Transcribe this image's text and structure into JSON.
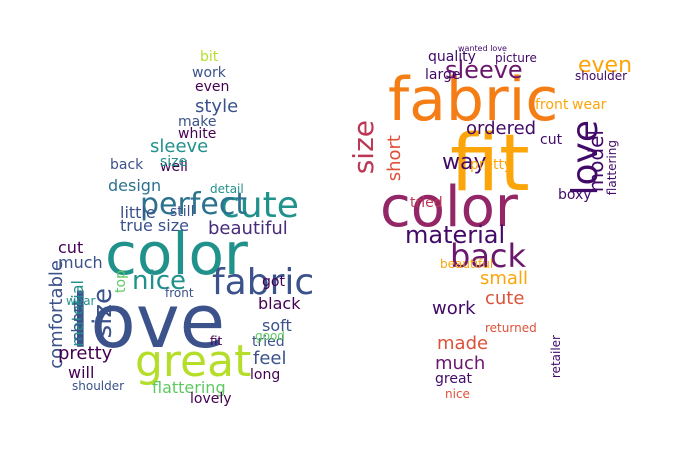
{
  "left_cloud": {
    "shape": "thumbs-up",
    "palette": [
      "#440154",
      "#3b528b",
      "#21918c",
      "#5ec962",
      "#b5de2b",
      "#fde725"
    ],
    "words": [
      {
        "text": "love",
        "weight": 1.0,
        "color": "#3b528b"
      },
      {
        "text": "color",
        "weight": 0.96,
        "color": "#21918c"
      },
      {
        "text": "great",
        "weight": 0.7,
        "color": "#b5de2b"
      },
      {
        "text": "fabric",
        "weight": 0.55,
        "color": "#3b528b"
      },
      {
        "text": "cute",
        "weight": 0.55,
        "color": "#21918c"
      },
      {
        "text": "perfect",
        "weight": 0.5,
        "color": "#2c728e"
      },
      {
        "text": "nice",
        "weight": 0.5,
        "color": "#21918c"
      },
      {
        "text": "size",
        "weight": 0.5,
        "color": "#3b528b"
      },
      {
        "text": "beautiful",
        "weight": 0.38,
        "color": "#472c7a"
      },
      {
        "text": "true size",
        "weight": 0.35,
        "color": "#3b528b"
      },
      {
        "text": "flattering",
        "weight": 0.35,
        "color": "#5ec962"
      },
      {
        "text": "comfortable",
        "weight": 0.32,
        "color": "#3b528b"
      },
      {
        "text": "pretty",
        "weight": 0.32,
        "color": "#440154"
      },
      {
        "text": "feel",
        "weight": 0.32,
        "color": "#3b528b"
      },
      {
        "text": "sleeve",
        "weight": 0.3,
        "color": "#21918c"
      },
      {
        "text": "style",
        "weight": 0.28,
        "color": "#3b528b"
      },
      {
        "text": "black",
        "weight": 0.28,
        "color": "#440154"
      },
      {
        "text": "soft",
        "weight": 0.28,
        "color": "#3b528b"
      },
      {
        "text": "little",
        "weight": 0.28,
        "color": "#3b528b"
      },
      {
        "text": "design",
        "weight": 0.26,
        "color": "#2c728e"
      },
      {
        "text": "material",
        "weight": 0.26,
        "color": "#21918c"
      },
      {
        "text": "well",
        "weight": 0.26,
        "color": "#440154"
      },
      {
        "text": "lovely",
        "weight": 0.26,
        "color": "#440154"
      },
      {
        "text": "much",
        "weight": 0.26,
        "color": "#3b528b"
      },
      {
        "text": "work",
        "weight": 0.24,
        "color": "#3b528b"
      },
      {
        "text": "even",
        "weight": 0.22,
        "color": "#440154"
      },
      {
        "text": "make",
        "weight": 0.22,
        "color": "#3b528b"
      },
      {
        "text": "white",
        "weight": 0.22,
        "color": "#440154"
      },
      {
        "text": "back",
        "weight": 0.24,
        "color": "#3b528b"
      },
      {
        "text": "size",
        "weight": 0.24,
        "color": "#21918c"
      },
      {
        "text": "long",
        "weight": 0.24,
        "color": "#440154"
      },
      {
        "text": "will",
        "weight": 0.24,
        "color": "#440154"
      },
      {
        "text": "shoulder",
        "weight": 0.2,
        "color": "#3b528b"
      },
      {
        "text": "short",
        "weight": 0.22,
        "color": "#3b528b"
      },
      {
        "text": "cut",
        "weight": 0.22,
        "color": "#440154"
      },
      {
        "text": "wear",
        "weight": 0.2,
        "color": "#21918c"
      },
      {
        "text": "tried",
        "weight": 0.22,
        "color": "#3b528b"
      },
      {
        "text": "got",
        "weight": 0.22,
        "color": "#440154"
      },
      {
        "text": "good",
        "weight": 0.2,
        "color": "#5ec962"
      },
      {
        "text": "detail",
        "weight": 0.16,
        "color": "#21918c"
      },
      {
        "text": "still",
        "weight": 0.18,
        "color": "#3b528b"
      },
      {
        "text": "bit",
        "weight": 0.16,
        "color": "#b5de2b"
      },
      {
        "text": "fit",
        "weight": 0.2,
        "color": "#440154"
      },
      {
        "text": "front",
        "weight": 0.18,
        "color": "#3b528b"
      },
      {
        "text": "top",
        "weight": 0.18,
        "color": "#5ec962"
      }
    ]
  },
  "right_cloud": {
    "shape": "thumbs-down",
    "palette": [
      "#000004",
      "#420a68",
      "#932667",
      "#dd513a",
      "#fca50a",
      "#fcffa4"
    ],
    "words": [
      {
        "text": "fit",
        "weight": 1.0,
        "color": "#fca50a"
      },
      {
        "text": "fabric",
        "weight": 0.82,
        "color": "#f57d15"
      },
      {
        "text": "color",
        "weight": 0.8,
        "color": "#932667"
      },
      {
        "text": "love",
        "weight": 0.55,
        "color": "#420a68"
      },
      {
        "text": "back",
        "weight": 0.5,
        "color": "#6a176e"
      },
      {
        "text": "size",
        "weight": 0.45,
        "color": "#bc3754"
      },
      {
        "text": "material",
        "weight": 0.4,
        "color": "#420a68"
      },
      {
        "text": "sleeve",
        "weight": 0.36,
        "color": "#6a176e"
      },
      {
        "text": "way",
        "weight": 0.36,
        "color": "#420a68"
      },
      {
        "text": "model",
        "weight": 0.3,
        "color": "#420a68"
      },
      {
        "text": "even",
        "weight": 0.3,
        "color": "#fca50a"
      },
      {
        "text": "ordered",
        "weight": 0.28,
        "color": "#420a68"
      },
      {
        "text": "work",
        "weight": 0.28,
        "color": "#420a68"
      },
      {
        "text": "much",
        "weight": 0.28,
        "color": "#6a176e"
      },
      {
        "text": "made",
        "weight": 0.28,
        "color": "#dd513a"
      },
      {
        "text": "cute",
        "weight": 0.26,
        "color": "#dd513a"
      },
      {
        "text": "small",
        "weight": 0.26,
        "color": "#fca50a"
      },
      {
        "text": "quality",
        "weight": 0.22,
        "color": "#420a68"
      },
      {
        "text": "large",
        "weight": 0.22,
        "color": "#420a68"
      },
      {
        "text": "front",
        "weight": 0.2,
        "color": "#fca50a"
      },
      {
        "text": "short",
        "weight": 0.2,
        "color": "#dd513a"
      },
      {
        "text": "pretty",
        "weight": 0.2,
        "color": "#fca50a"
      },
      {
        "text": "cut",
        "weight": 0.2,
        "color": "#420a68"
      },
      {
        "text": "flattering",
        "weight": 0.2,
        "color": "#420a68"
      },
      {
        "text": "boxy",
        "weight": 0.2,
        "color": "#420a68"
      },
      {
        "text": "great",
        "weight": 0.2,
        "color": "#420a68"
      },
      {
        "text": "tried",
        "weight": 0.18,
        "color": "#bc3754"
      },
      {
        "text": "beautiful",
        "weight": 0.16,
        "color": "#fca50a"
      },
      {
        "text": "wear",
        "weight": 0.18,
        "color": "#fca50a"
      },
      {
        "text": "returned",
        "weight": 0.18,
        "color": "#dd513a"
      },
      {
        "text": "retailer",
        "weight": 0.16,
        "color": "#420a68"
      },
      {
        "text": "shoulder",
        "weight": 0.14,
        "color": "#420a68"
      },
      {
        "text": "picture",
        "weight": 0.14,
        "color": "#420a68"
      },
      {
        "text": "nice",
        "weight": 0.14,
        "color": "#dd513a"
      },
      {
        "text": "wanted love",
        "weight": 0.08,
        "color": "#420a68"
      }
    ]
  }
}
